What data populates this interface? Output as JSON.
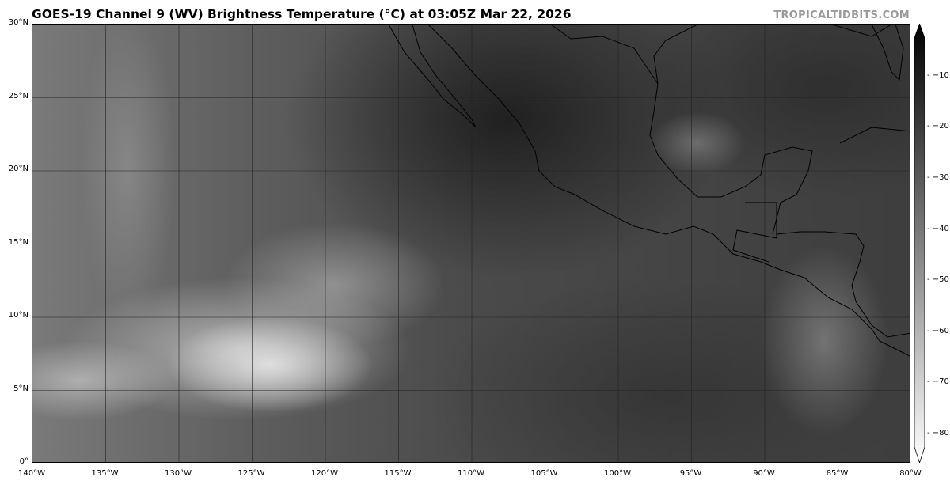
{
  "title": "GOES-19 Channel 9 (WV) Brightness Temperature (°C) at 03:05Z Mar 22, 2026",
  "watermark": "TROPICALTIDBITS.COM",
  "map": {
    "lon_ticks": [
      "140°W",
      "135°W",
      "130°W",
      "125°W",
      "120°W",
      "115°W",
      "110°W",
      "105°W",
      "100°W",
      "95°W",
      "90°W",
      "85°W",
      "80°W"
    ],
    "lat_ticks": [
      "30°N",
      "25°N",
      "20°N",
      "15°N",
      "10°N",
      "5°N",
      "0°"
    ],
    "lon_range": [
      -140,
      -80
    ],
    "lat_range": [
      0,
      30
    ]
  },
  "colorbar": {
    "ticks": [
      "−10",
      "−20",
      "−30",
      "−40",
      "−50",
      "−60",
      "−70",
      "−80"
    ],
    "range": [
      -82,
      -2
    ],
    "colors": [
      "#ffffff",
      "#000000"
    ]
  }
}
